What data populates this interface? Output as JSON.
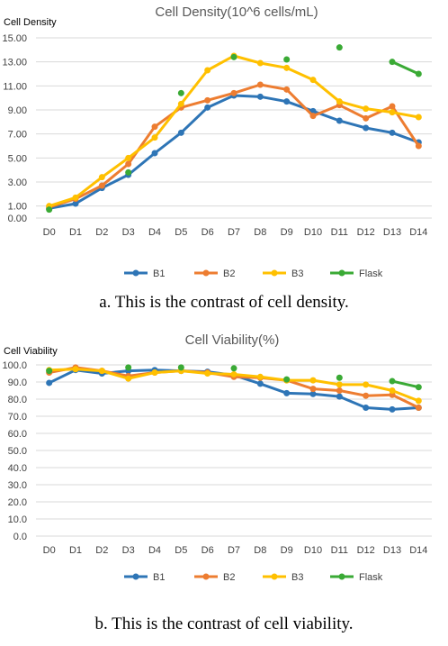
{
  "colors": {
    "B1": "#2e75b6",
    "B2": "#ed7d31",
    "B3": "#ffc000",
    "Flask": "#3aaa35"
  },
  "captions": {
    "a": "a.  This is the contrast of cell density.",
    "b": "b.  This is the contrast of cell viability."
  },
  "chart_data": [
    {
      "type": "line",
      "title": "Cell Density(10^6 cells/mL)",
      "ylabel": "Cell Density",
      "xlabel": "",
      "ylim": [
        0,
        15
      ],
      "yticks": [
        "0.00",
        "1.00",
        "3.00",
        "5.00",
        "7.00",
        "9.00",
        "11.00",
        "13.00",
        "15.00"
      ],
      "ytick_values": [
        0,
        1,
        3,
        5,
        7,
        9,
        11,
        13,
        15
      ],
      "categories": [
        "D0",
        "D1",
        "D2",
        "D3",
        "D4",
        "D5",
        "D6",
        "D7",
        "D8",
        "D9",
        "D10",
        "D11",
        "D12",
        "D13",
        "D14"
      ],
      "legend": "bottom",
      "grid": true,
      "series": [
        {
          "name": "B1",
          "values": [
            0.8,
            1.2,
            2.5,
            3.6,
            5.4,
            7.1,
            9.2,
            10.2,
            10.1,
            9.7,
            8.9,
            8.1,
            7.5,
            7.1,
            6.3
          ]
        },
        {
          "name": "B2",
          "values": [
            0.9,
            1.6,
            2.7,
            4.5,
            7.6,
            9.2,
            9.8,
            10.4,
            11.1,
            10.7,
            8.5,
            9.4,
            8.3,
            9.3,
            6.0
          ]
        },
        {
          "name": "B3",
          "values": [
            1.0,
            1.7,
            3.4,
            5.0,
            6.7,
            9.5,
            12.3,
            13.5,
            12.9,
            12.5,
            11.5,
            9.7,
            9.1,
            8.8,
            8.4
          ]
        },
        {
          "name": "Flask",
          "values": [
            0.7,
            null,
            null,
            3.8,
            null,
            10.4,
            null,
            13.4,
            null,
            13.2,
            null,
            14.2,
            null,
            13.0,
            12.0
          ]
        }
      ]
    },
    {
      "type": "line",
      "title": "Cell Viability(%)",
      "ylabel": "Cell Viability",
      "xlabel": "",
      "ylim": [
        0,
        100
      ],
      "yticks": [
        "0.0",
        "10.0",
        "20.0",
        "30.0",
        "40.0",
        "50.0",
        "60.0",
        "70.0",
        "80.0",
        "90.0",
        "100.0"
      ],
      "ytick_values": [
        0,
        10,
        20,
        30,
        40,
        50,
        60,
        70,
        80,
        90,
        100
      ],
      "categories": [
        "D0",
        "D1",
        "D2",
        "D3",
        "D4",
        "D5",
        "D6",
        "D7",
        "D8",
        "D9",
        "D10",
        "D11",
        "D12",
        "D13",
        "D14"
      ],
      "legend": "bottom",
      "grid": true,
      "series": [
        {
          "name": "B1",
          "values": [
            89.5,
            97,
            95,
            96.5,
            97,
            96.5,
            96,
            94,
            89,
            83.5,
            83,
            81.5,
            75,
            74,
            75
          ]
        },
        {
          "name": "B2",
          "values": [
            95.5,
            98.5,
            96.5,
            93.5,
            95.5,
            96.5,
            95.5,
            93,
            92.5,
            91,
            86,
            85,
            82,
            82.5,
            75
          ]
        },
        {
          "name": "B3",
          "values": [
            97,
            97.5,
            96.5,
            92,
            95.5,
            96.5,
            95,
            94.5,
            93,
            91,
            91,
            88.5,
            88.5,
            85,
            79
          ]
        },
        {
          "name": "Flask",
          "values": [
            96.5,
            null,
            null,
            98.5,
            null,
            98.5,
            null,
            98,
            null,
            91.5,
            null,
            92.5,
            null,
            90.5,
            87
          ]
        }
      ]
    }
  ]
}
